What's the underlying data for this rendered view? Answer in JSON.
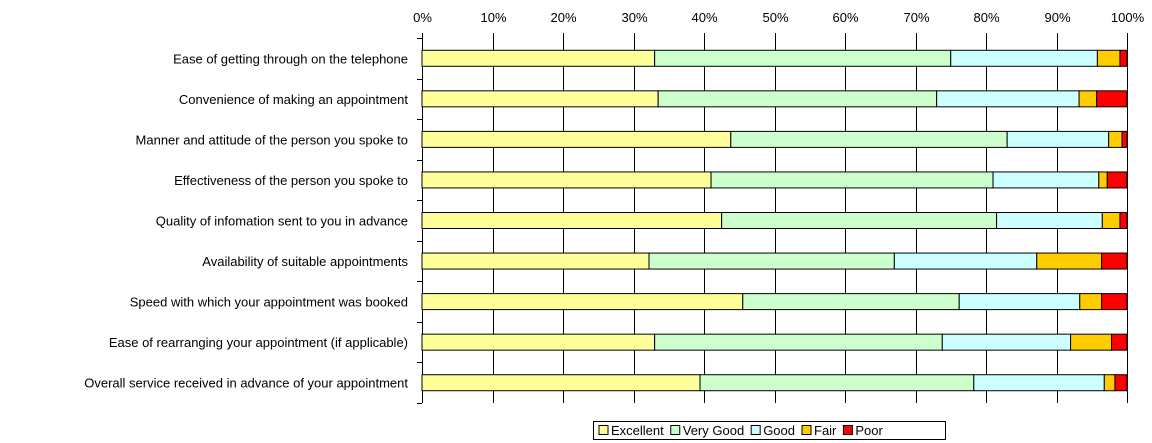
{
  "chart_data": {
    "type": "bar",
    "orientation": "horizontal",
    "stacked": "percent",
    "title": "",
    "xlabel": "",
    "ylabel": "",
    "xlim": [
      0,
      100
    ],
    "x_ticks": [
      "0%",
      "10%",
      "20%",
      "30%",
      "40%",
      "50%",
      "60%",
      "70%",
      "80%",
      "90%",
      "100%"
    ],
    "grid": true,
    "legend_position": "bottom",
    "categories": [
      "Ease of getting through on the telephone",
      "Convenience of making an appointment",
      "Manner and attitude of the person you spoke to",
      "Effectiveness of the person you spoke to",
      "Quality of infomation sent to you in advance",
      "Availability of suitable appointments",
      "Speed with which your appointment was booked",
      "Ease of rearranging your appointment (if applicable)",
      "Overall service received in advance of your appointment"
    ],
    "series": [
      {
        "name": "Excellent",
        "color": "#FFFF99",
        "values": [
          33,
          33.5,
          43.8,
          41,
          42.5,
          32.2,
          45.5,
          33,
          39.2
        ]
      },
      {
        "name": "Very Good",
        "color": "#CCFFCC",
        "values": [
          42,
          39.5,
          39.2,
          40,
          39,
          34.8,
          30.7,
          40.8,
          38.6
        ]
      },
      {
        "name": "Good",
        "color": "#CCFFFF",
        "values": [
          20.8,
          20.2,
          14.4,
          15,
          15,
          20.2,
          17.1,
          18.2,
          18.4
        ]
      },
      {
        "name": "Fair",
        "color": "#FFCC00",
        "values": [
          3.2,
          2.5,
          1.9,
          1.2,
          2.5,
          9.2,
          3.1,
          5.8,
          1.5
        ]
      },
      {
        "name": "Poor",
        "color": "#FF0000",
        "values": [
          1,
          4.3,
          0.7,
          2.8,
          1,
          3.6,
          3.6,
          2.2,
          1.7
        ]
      }
    ]
  }
}
